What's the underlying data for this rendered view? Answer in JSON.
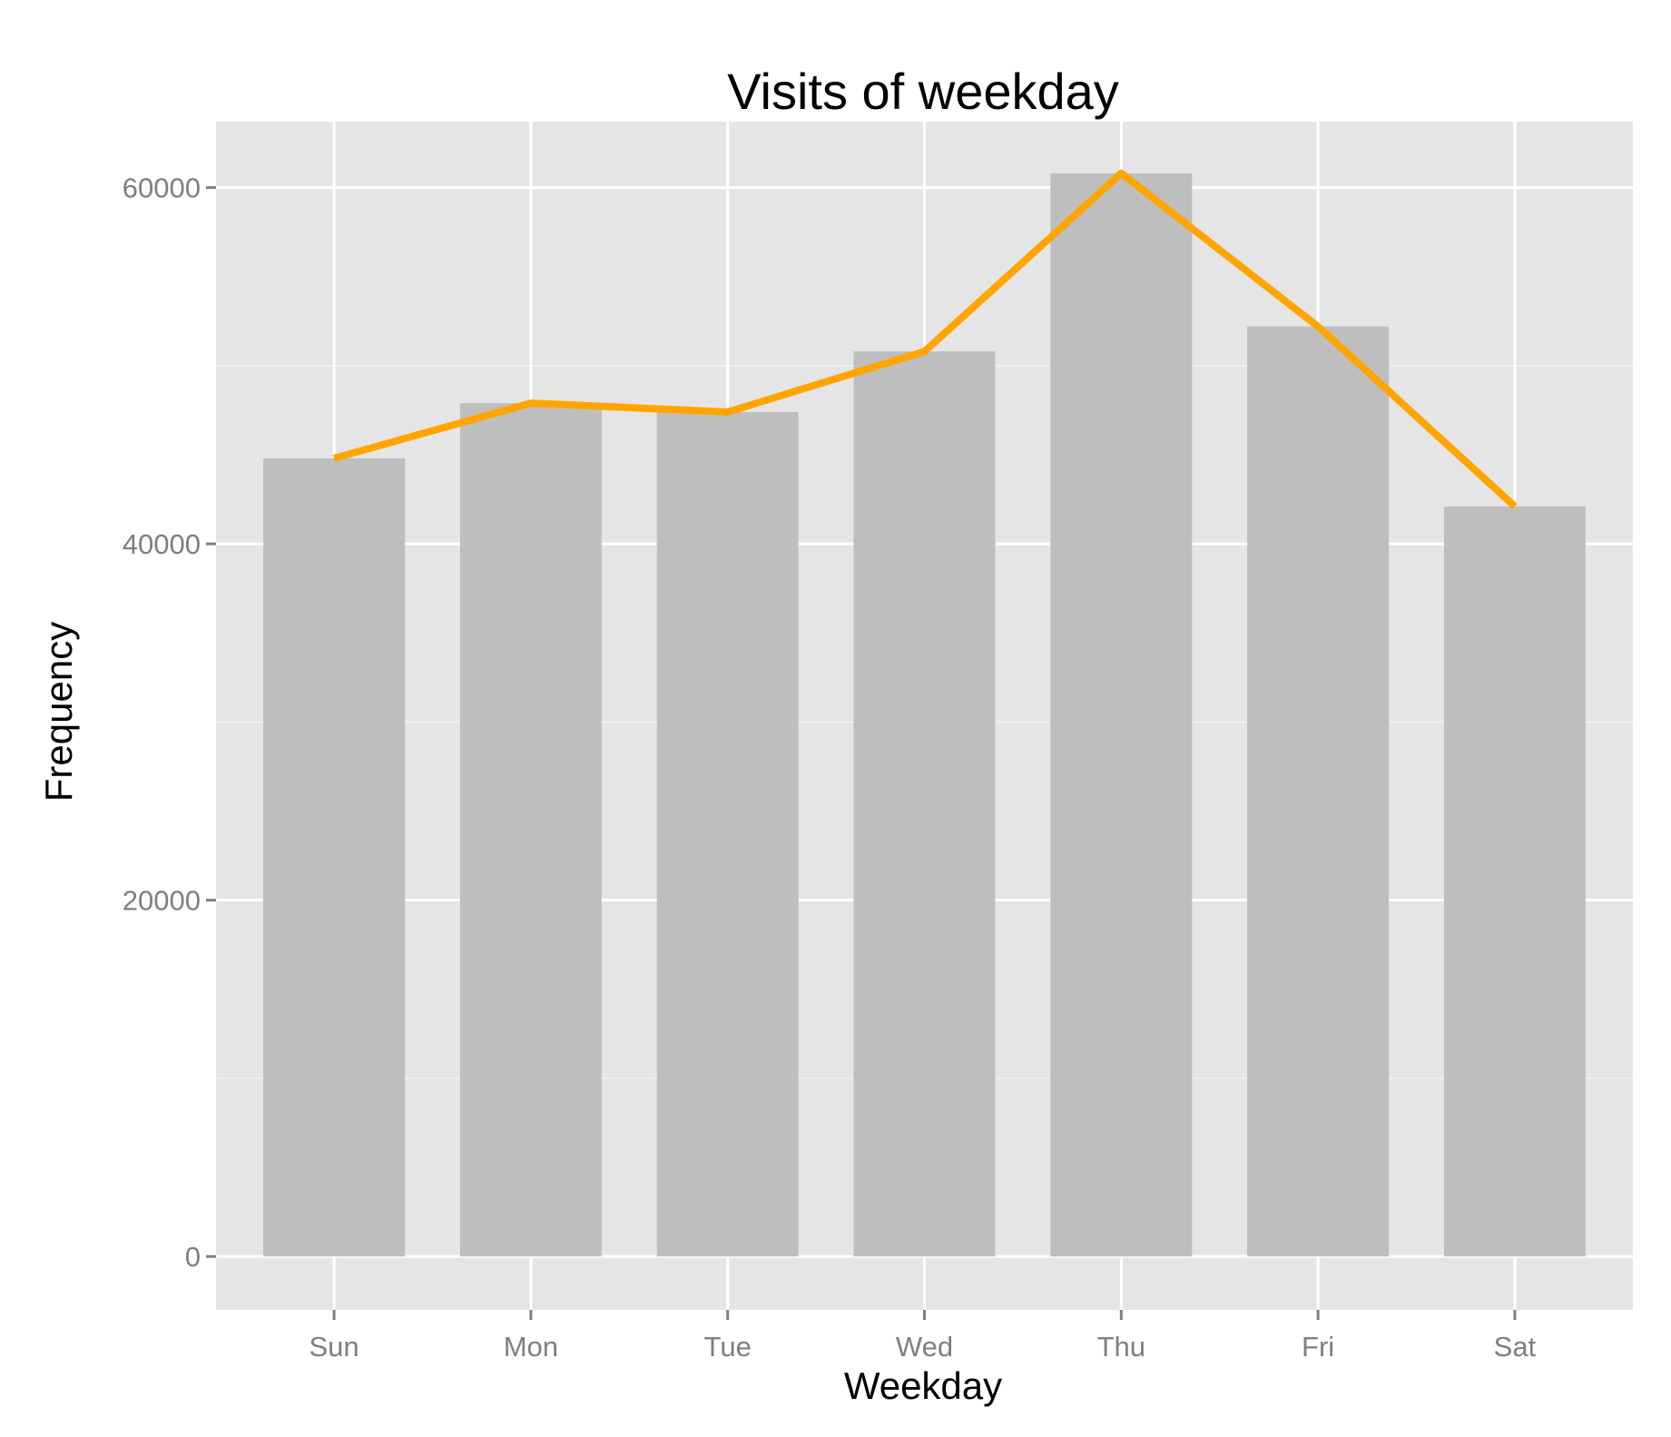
{
  "chart_data": {
    "type": "bar",
    "title": "Visits of weekday",
    "xlabel": "Weekday",
    "ylabel": "Frequency",
    "categories": [
      "Sun",
      "Mon",
      "Tue",
      "Wed",
      "Thu",
      "Fri",
      "Sat"
    ],
    "series": [
      {
        "type": "bar",
        "values": [
          44800,
          47900,
          47400,
          50800,
          60800,
          52200,
          42100
        ]
      },
      {
        "type": "line",
        "values": [
          44800,
          47900,
          47400,
          50800,
          60800,
          52200,
          42100
        ]
      }
    ],
    "yticks": [
      0,
      20000,
      40000,
      60000
    ],
    "ytick_labels": [
      "0",
      "20000",
      "40000",
      "60000"
    ],
    "ylim": [
      -3000,
      63700
    ],
    "grid": true,
    "legend": "none",
    "colors": {
      "panel": "#e5e5e5",
      "grid_major": "#ffffff",
      "grid_minor": "#f2f2f2",
      "bar": "#bebebe",
      "line": "#ffa500",
      "tick_text": "#7f7f7f",
      "tick_mark": "#7f7f7f"
    }
  }
}
